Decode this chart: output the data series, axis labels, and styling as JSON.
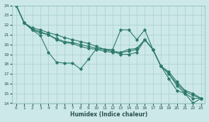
{
  "xlabel": "Humidex (Indice chaleur)",
  "ylabel": "",
  "bg_color": "#cce8e8",
  "line_color": "#2d7b6e",
  "grid_color": "#aacfcf",
  "xlim": [
    -0.5,
    23.5
  ],
  "ylim": [
    14,
    24
  ],
  "xticks": [
    0,
    1,
    2,
    3,
    4,
    5,
    6,
    7,
    8,
    9,
    10,
    11,
    12,
    13,
    14,
    15,
    16,
    17,
    18,
    19,
    20,
    21,
    22,
    23
  ],
  "yticks": [
    14,
    15,
    16,
    17,
    18,
    19,
    20,
    21,
    22,
    23,
    24
  ],
  "lines": [
    [
      24,
      22.2,
      21.5,
      20.9,
      19.2,
      18.2,
      18.1,
      18.1,
      17.5,
      18.5,
      19.6,
      19.5,
      19.5,
      21.5,
      21.5,
      20.5,
      21.5,
      19.5,
      17.8,
      16.5,
      15.3,
      15.0,
      14.0,
      14.5
    ],
    [
      24,
      22.2,
      21.5,
      21.2,
      21.0,
      20.5,
      20.2,
      20.1,
      19.8,
      19.6,
      19.5,
      19.3,
      19.2,
      19.2,
      19.5,
      19.6,
      20.5,
      19.5,
      17.8,
      17.2,
      16.2,
      15.3,
      15.0,
      14.5
    ],
    [
      24,
      22.2,
      21.6,
      21.3,
      21.0,
      20.6,
      20.3,
      20.2,
      20.0,
      19.8,
      19.6,
      19.5,
      19.3,
      19.2,
      19.3,
      19.5,
      20.5,
      19.5,
      17.8,
      17.0,
      16.0,
      15.2,
      14.8,
      14.5
    ],
    [
      24,
      22.2,
      21.7,
      21.5,
      21.2,
      21.0,
      20.7,
      20.5,
      20.3,
      20.1,
      19.8,
      19.5,
      19.3,
      19.0,
      19.0,
      19.2,
      20.5,
      19.5,
      17.8,
      17.0,
      15.8,
      15.0,
      14.5,
      14.5
    ]
  ]
}
